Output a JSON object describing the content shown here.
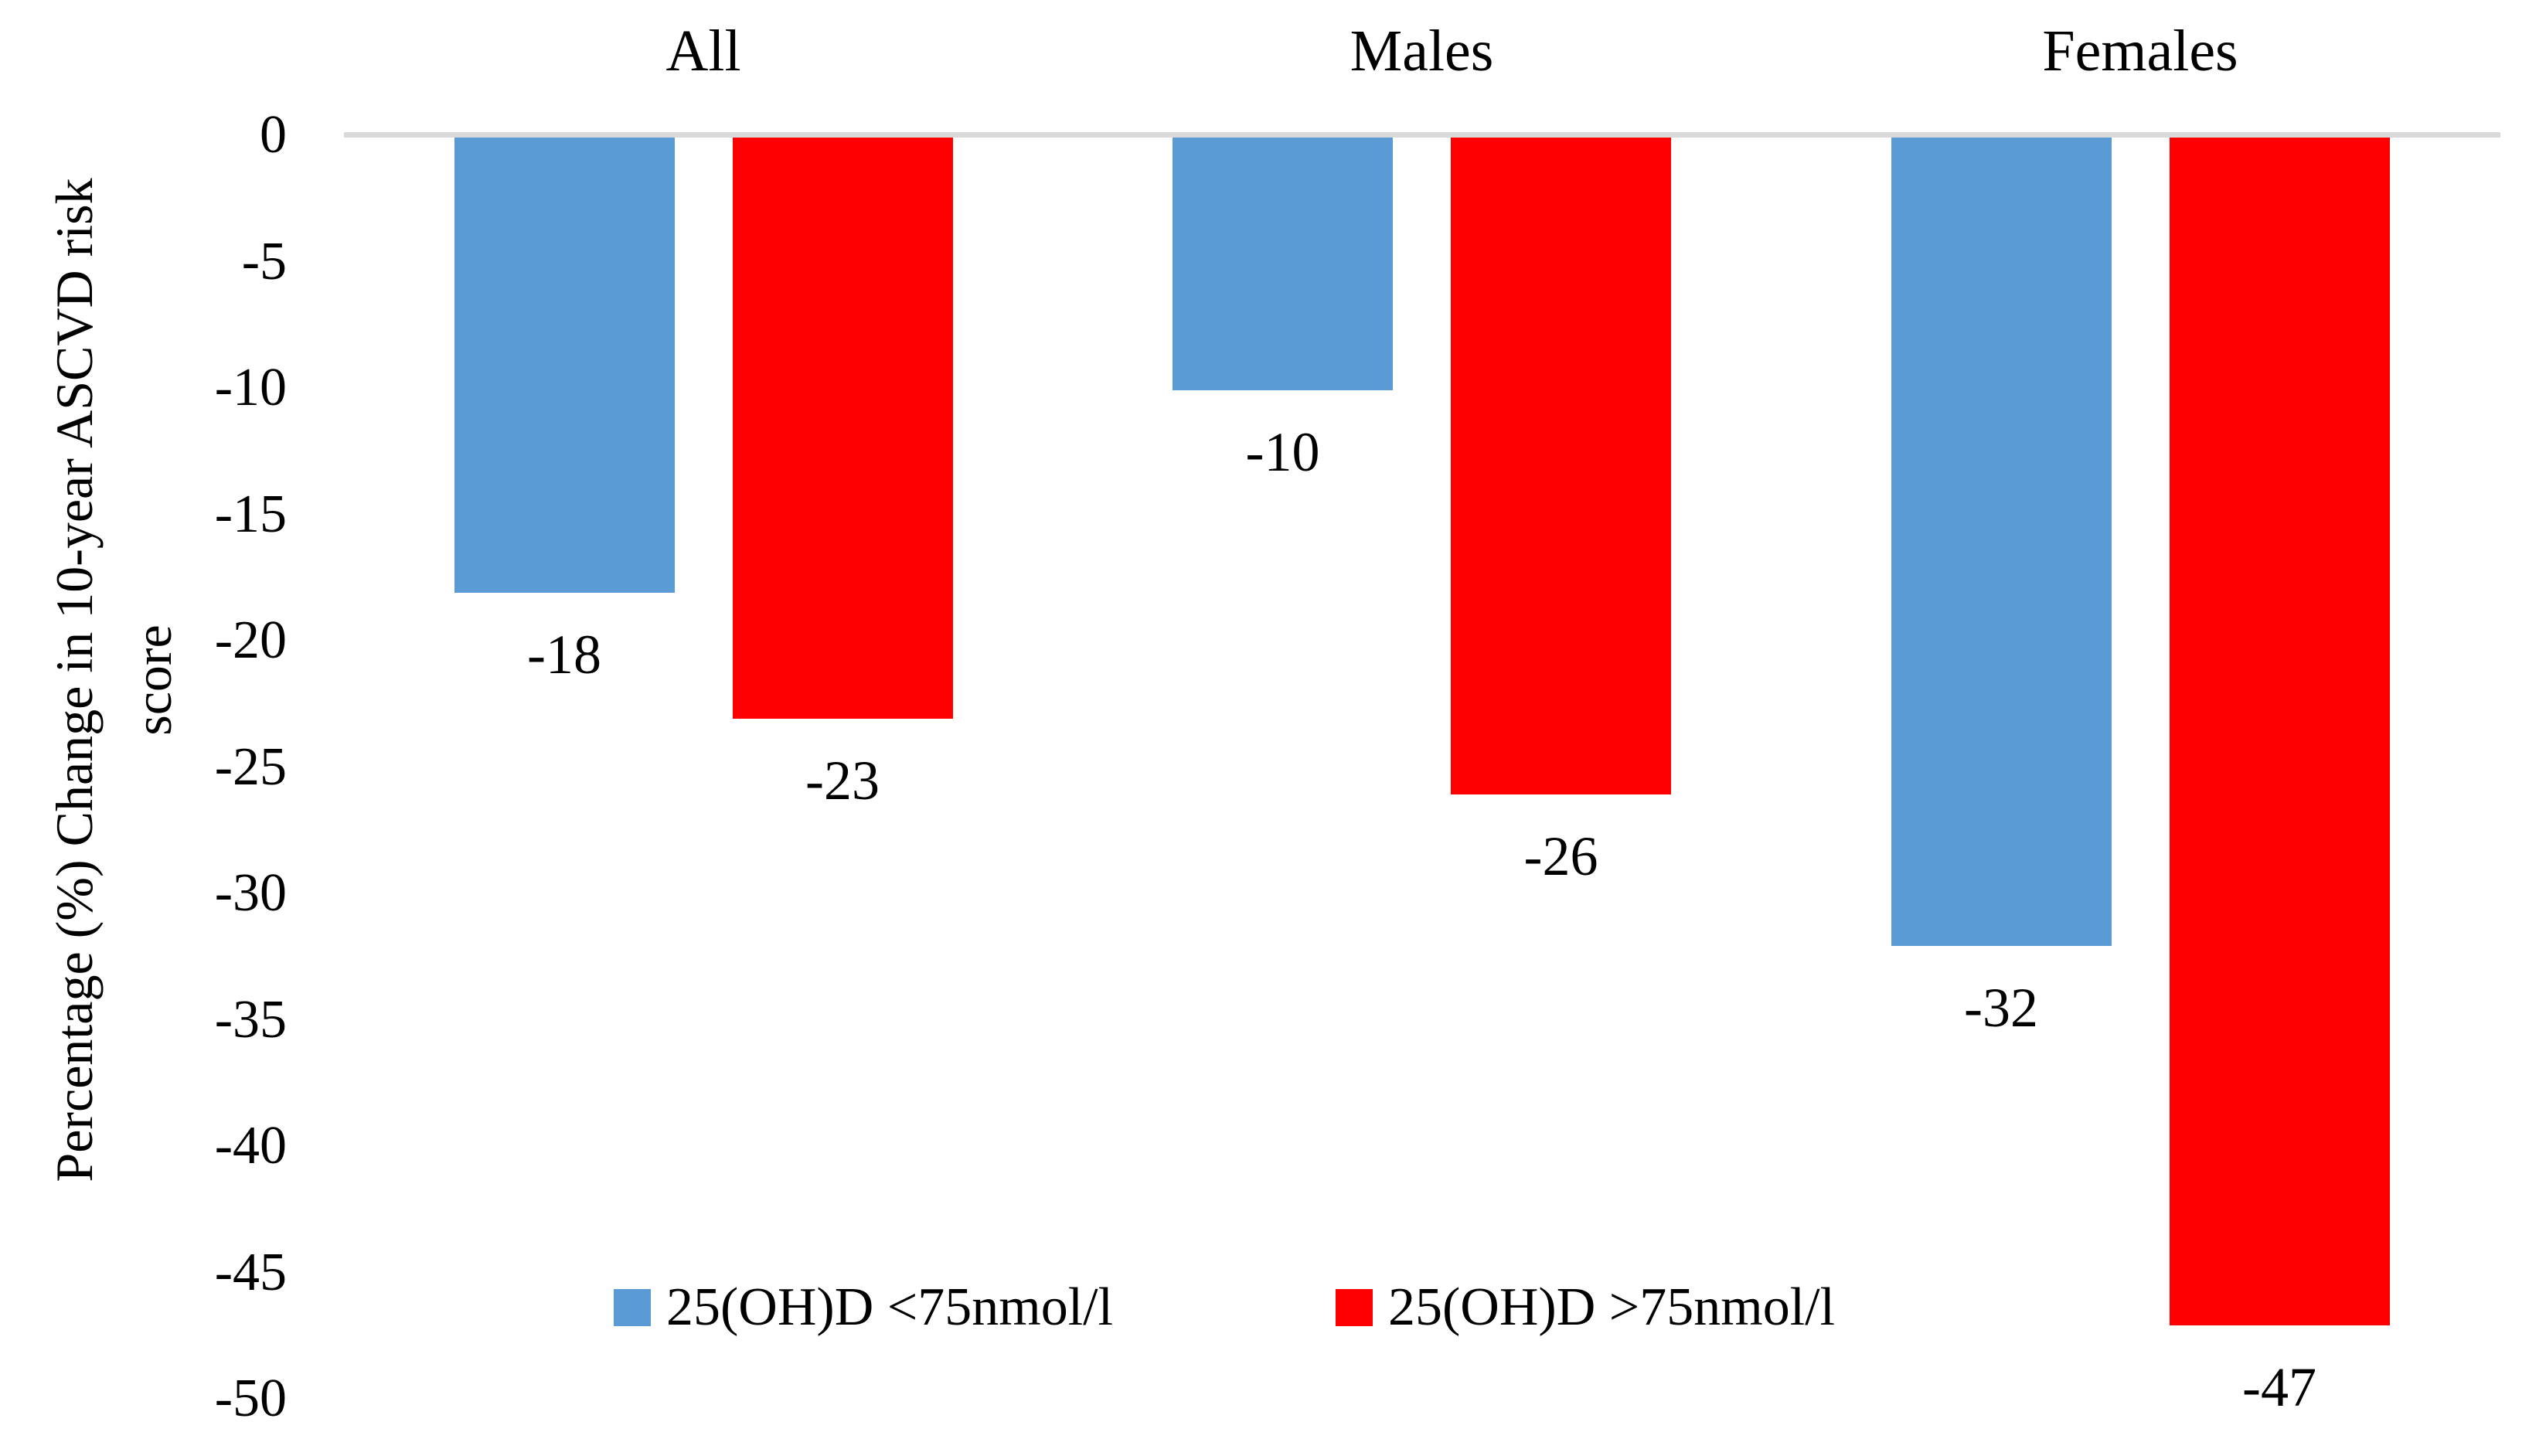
{
  "chart_data": {
    "type": "bar",
    "orientation": "vertical",
    "title": "",
    "categories": [
      "All",
      "Males",
      "Females"
    ],
    "series": [
      {
        "name": "25(OH)D <75nmol/l",
        "color": "#5B9BD5",
        "values": [
          -18,
          -10,
          -32
        ]
      },
      {
        "name": "25(OH)D >75nmol/l",
        "color": "#FF0000",
        "values": [
          -23,
          -26,
          -47
        ]
      }
    ],
    "data_labels": [
      "-18",
      "-10",
      "-32",
      "-23",
      "-26",
      "-47"
    ],
    "xlabel": "",
    "ylabel_line1": "Percentage (%) Change in 10-year ASCVD risk",
    "ylabel_line2": "score",
    "yticks": [
      0,
      -5,
      -10,
      -15,
      -20,
      -25,
      -30,
      -35,
      -40,
      -45,
      -50
    ],
    "ylim": [
      0,
      -50
    ],
    "grid": false,
    "show_data_labels": true,
    "legend_position": "bottom-inside",
    "colors": {
      "axis_line": "#D9D9D9",
      "text": "#000000",
      "background": "#FFFFFF",
      "series_blue": "#5B9BD5",
      "series_red": "#FF0000"
    }
  }
}
